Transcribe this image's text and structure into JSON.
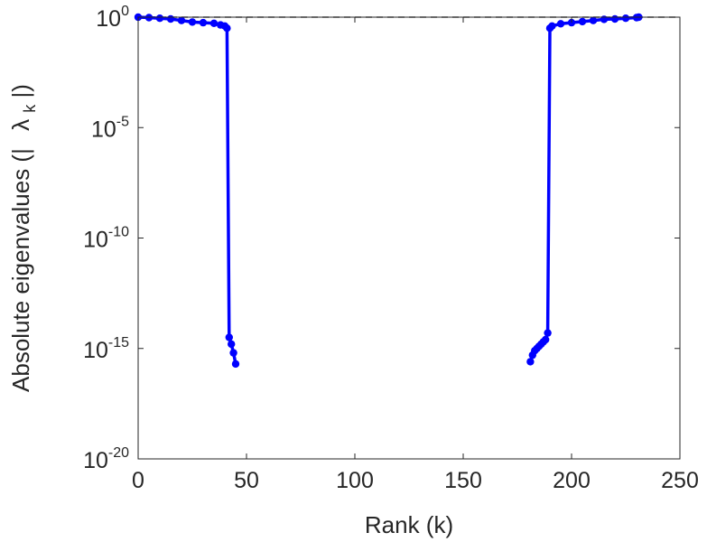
{
  "chart_data": {
    "type": "scatter",
    "title": "",
    "xlabel": "Rank (k)",
    "ylabel": {
      "prefix": "Absolute eigenvalues (|",
      "symbol": "λ",
      "subscript": "k",
      "suffix": "|)"
    },
    "x_ticks": [
      0,
      50,
      100,
      150,
      200,
      250
    ],
    "x_tick_labels": [
      "0",
      "50",
      "100",
      "150",
      "200",
      "250"
    ],
    "y_ticks": [
      0,
      -5,
      -10,
      -15,
      -20
    ],
    "y_tick_base": "10",
    "y_tick_exponents": [
      "0",
      "-5",
      "-10",
      "-15",
      "-20"
    ],
    "xlim": [
      0,
      250
    ],
    "ylim_log10": [
      -20,
      0
    ],
    "yscale": "log",
    "grid": false,
    "reference_line": {
      "y": 1,
      "style": "dashed",
      "color": "#555555"
    },
    "series": [
      {
        "color": "#0000ff",
        "x": [
          0,
          5,
          10,
          15,
          20,
          25,
          30,
          35,
          38,
          40,
          41,
          42,
          43,
          44,
          45,
          181,
          182,
          183,
          184,
          185,
          186,
          187,
          188,
          189,
          190,
          191,
          195,
          200,
          205,
          210,
          215,
          220,
          225,
          230,
          231
        ],
        "log10y": [
          0,
          -0.02,
          -0.05,
          -0.08,
          -0.15,
          -0.22,
          -0.25,
          -0.28,
          -0.35,
          -0.4,
          -0.5,
          -14.5,
          -14.8,
          -15.2,
          -15.7,
          -15.6,
          -15.3,
          -15.1,
          -15.0,
          -14.9,
          -14.8,
          -14.7,
          -14.6,
          -14.3,
          -0.5,
          -0.4,
          -0.3,
          -0.25,
          -0.2,
          -0.15,
          -0.1,
          -0.08,
          -0.05,
          -0.02,
          0
        ]
      }
    ]
  }
}
